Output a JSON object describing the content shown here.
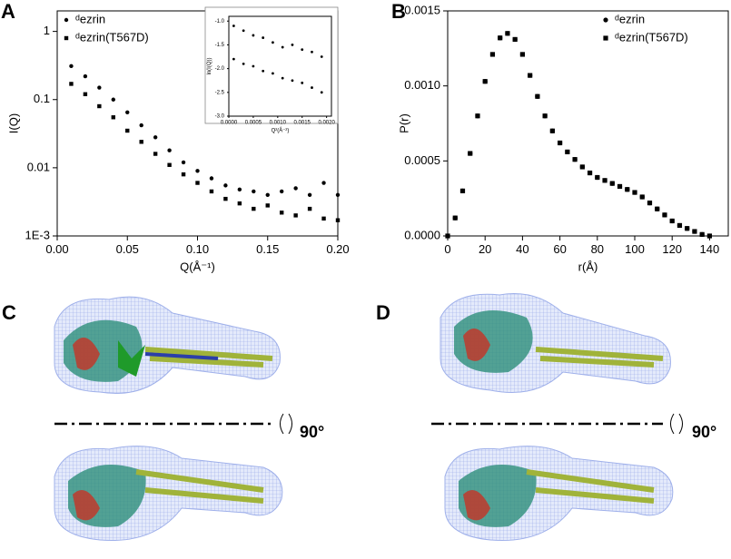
{
  "chart_data": [
    {
      "type": "scatter",
      "panel": "A",
      "xlabel": "Q(Å⁻¹)",
      "ylabel": "I(Q)",
      "log_y": true,
      "legend": "upper left",
      "xlim": [
        0,
        0.2
      ],
      "ylim": [
        0.001,
        2
      ],
      "xticks": [
        {
          "value": 0,
          "label": "0.00"
        },
        0.05,
        {
          "value": 0.1,
          "label": "0.10"
        },
        0.15,
        {
          "value": 0.2,
          "label": "0.20"
        }
      ],
      "yticks": [
        {
          "value": 0.001,
          "label": "1E-3"
        },
        0.01,
        0.1,
        1
      ],
      "x": [
        0.01,
        0.02,
        0.03,
        0.04,
        0.05,
        0.06,
        0.07,
        0.08,
        0.09,
        0.1,
        0.11,
        0.12,
        0.13,
        0.14,
        0.15,
        0.16,
        0.17,
        0.18,
        0.19,
        0.2
      ],
      "series": [
        {
          "name": "ᵈezrin",
          "marker": "circle",
          "color": "#000000",
          "values": [
            0.31,
            0.22,
            0.15,
            0.1,
            0.065,
            0.042,
            0.028,
            0.018,
            0.012,
            0.009,
            0.007,
            0.0055,
            0.0048,
            0.0045,
            0.004,
            0.0045,
            0.005,
            0.004,
            0.006,
            0.004
          ]
        },
        {
          "name": "ᵈezrin(T567D)",
          "marker": "square",
          "color": "#000000",
          "values": [
            0.17,
            0.12,
            0.08,
            0.055,
            0.035,
            0.024,
            0.016,
            0.011,
            0.008,
            0.006,
            0.0045,
            0.0035,
            0.003,
            0.0025,
            0.0028,
            0.0022,
            0.002,
            0.0025,
            0.0018,
            0.0017
          ]
        }
      ]
    },
    {
      "type": "scatter",
      "inset_of": "A",
      "xlabel": "Q²(Å⁻²)",
      "ylabel": "ln(I(Q))",
      "log_y": false,
      "xlim": [
        0,
        0.0021
      ],
      "ylim": [
        -3.0,
        -0.9
      ],
      "xticks": [
        {
          "value": 0,
          "label": "0.0000"
        },
        0.0005,
        {
          "value": 0.001,
          "label": "0.0010"
        },
        0.0015,
        {
          "value": 0.002,
          "label": "0.0020"
        }
      ],
      "yticks": [
        {
          "value": -1.0,
          "label": "-1.0"
        },
        -1.5,
        {
          "value": -2.0,
          "label": "-2.0"
        },
        -2.5,
        {
          "value": -3.0,
          "label": "-3.0"
        }
      ],
      "x": [
        0.0001,
        0.0003,
        0.0005,
        0.0007,
        0.0009,
        0.0011,
        0.0013,
        0.0015,
        0.0017,
        0.0019
      ],
      "series": [
        {
          "marker": "circle",
          "color": "#000000",
          "values": [
            -1.1,
            -1.2,
            -1.3,
            -1.35,
            -1.45,
            -1.55,
            -1.5,
            -1.6,
            -1.65,
            -1.75
          ]
        },
        {
          "marker": "circle",
          "color": "#000000",
          "values": [
            -1.8,
            -1.9,
            -1.95,
            -2.05,
            -2.1,
            -2.2,
            -2.25,
            -2.3,
            -2.4,
            -2.5
          ]
        }
      ]
    },
    {
      "type": "scatter",
      "panel": "B",
      "xlabel": "r(Å)",
      "ylabel": "P(r)",
      "log_y": false,
      "legend": "upper right",
      "xlim": [
        0,
        150
      ],
      "ylim": [
        0,
        0.0015
      ],
      "xticks": [
        0,
        20,
        40,
        60,
        80,
        100,
        120,
        140
      ],
      "yticks": [
        {
          "value": 0,
          "label": "0.0000"
        },
        0.0005,
        {
          "value": 0.001,
          "label": "0.0010"
        },
        0.0015
      ],
      "x": [
        0,
        4,
        8,
        12,
        16,
        20,
        24,
        28,
        32,
        36,
        40,
        44,
        48,
        52,
        56,
        60,
        64,
        68,
        72,
        76,
        80,
        84,
        88,
        92,
        96,
        100,
        104,
        108,
        112,
        116,
        120,
        124,
        128,
        132,
        136,
        140
      ],
      "series": [
        {
          "name": "ᵈezrin",
          "marker": "circle",
          "color": "#000000",
          "values": [
            0,
            0.00012,
            0.0003,
            0.00055,
            0.0008,
            0.00103,
            0.00121,
            0.00132,
            0.00135,
            0.00131,
            0.00121,
            0.00107,
            0.00093,
            0.0008,
            0.0007,
            0.00062,
            0.00056,
            0.00051,
            0.00046,
            0.00042,
            0.00039,
            0.00037,
            0.00035,
            0.00033,
            0.00031,
            0.00029,
            0.00026,
            0.00022,
            0.00018,
            0.00014,
            0.0001,
            7e-05,
            5e-05,
            3e-05,
            1e-05,
            0
          ]
        },
        {
          "name": "ᵈezrin(T567D)",
          "marker": "square",
          "color": "#000000",
          "values": [
            0,
            0.00012,
            0.0003,
            0.00055,
            0.0008,
            0.00103,
            0.00121,
            0.00132,
            0.00135,
            0.00131,
            0.00121,
            0.00107,
            0.00093,
            0.0008,
            0.0007,
            0.00062,
            0.00056,
            0.00051,
            0.00046,
            0.00042,
            0.00039,
            0.00037,
            0.00035,
            0.00033,
            0.00031,
            0.00029,
            0.00026,
            0.00022,
            0.00018,
            0.00014,
            0.0001,
            7e-05,
            5e-05,
            3e-05,
            1e-05,
            0
          ]
        }
      ]
    }
  ],
  "structure_panels": [
    {
      "label": "C",
      "rotation": "90°"
    },
    {
      "label": "D",
      "rotation": "90°"
    }
  ]
}
